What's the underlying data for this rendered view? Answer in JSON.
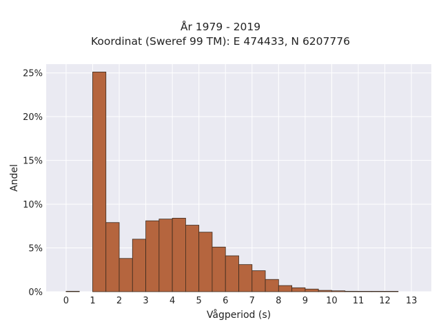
{
  "chart_data": {
    "type": "bar",
    "title": "År 1979 - 2019",
    "subtitle": "Koordinat (Sweref 99 TM): E 474433, N 6207776",
    "xlabel": "Vågperiod (s)",
    "ylabel": "Andel",
    "xlim": [
      -0.75,
      13.75
    ],
    "ylim": [
      0,
      0.26
    ],
    "x_ticks": [
      0,
      1,
      2,
      3,
      4,
      5,
      6,
      7,
      8,
      9,
      10,
      11,
      12,
      13
    ],
    "y_ticks": [
      0,
      0.05,
      0.1,
      0.15,
      0.2,
      0.25
    ],
    "y_tick_labels": [
      "0%",
      "5%",
      "10%",
      "15%",
      "20%",
      "25%"
    ],
    "bin_width": 0.5,
    "bins": [
      {
        "start": 0.0,
        "end": 0.5,
        "value": 0.0005
      },
      {
        "start": 0.5,
        "end": 1.0,
        "value": 0.0
      },
      {
        "start": 1.0,
        "end": 1.5,
        "value": 0.251
      },
      {
        "start": 1.5,
        "end": 2.0,
        "value": 0.079
      },
      {
        "start": 2.0,
        "end": 2.5,
        "value": 0.038
      },
      {
        "start": 2.5,
        "end": 3.0,
        "value": 0.06
      },
      {
        "start": 3.0,
        "end": 3.5,
        "value": 0.081
      },
      {
        "start": 3.5,
        "end": 4.0,
        "value": 0.083
      },
      {
        "start": 4.0,
        "end": 4.5,
        "value": 0.084
      },
      {
        "start": 4.5,
        "end": 5.0,
        "value": 0.076
      },
      {
        "start": 5.0,
        "end": 5.5,
        "value": 0.068
      },
      {
        "start": 5.5,
        "end": 6.0,
        "value": 0.051
      },
      {
        "start": 6.0,
        "end": 6.5,
        "value": 0.041
      },
      {
        "start": 6.5,
        "end": 7.0,
        "value": 0.031
      },
      {
        "start": 7.0,
        "end": 7.5,
        "value": 0.024
      },
      {
        "start": 7.5,
        "end": 8.0,
        "value": 0.014
      },
      {
        "start": 8.0,
        "end": 8.5,
        "value": 0.007
      },
      {
        "start": 8.5,
        "end": 9.0,
        "value": 0.0045
      },
      {
        "start": 9.0,
        "end": 9.5,
        "value": 0.003
      },
      {
        "start": 9.5,
        "end": 10.0,
        "value": 0.0015
      },
      {
        "start": 10.0,
        "end": 10.5,
        "value": 0.001
      },
      {
        "start": 10.5,
        "end": 11.0,
        "value": 0.0005
      },
      {
        "start": 11.0,
        "end": 11.5,
        "value": 0.0004
      },
      {
        "start": 11.5,
        "end": 12.0,
        "value": 0.0003
      },
      {
        "start": 12.0,
        "end": 12.5,
        "value": 0.0002
      }
    ],
    "grid": true,
    "legend": "none",
    "colors": {
      "bar_fill": "#b5653e",
      "bar_edge": "#3a2a1e",
      "plot_background": "#eaeaf2",
      "grid": "#ffffff"
    }
  }
}
